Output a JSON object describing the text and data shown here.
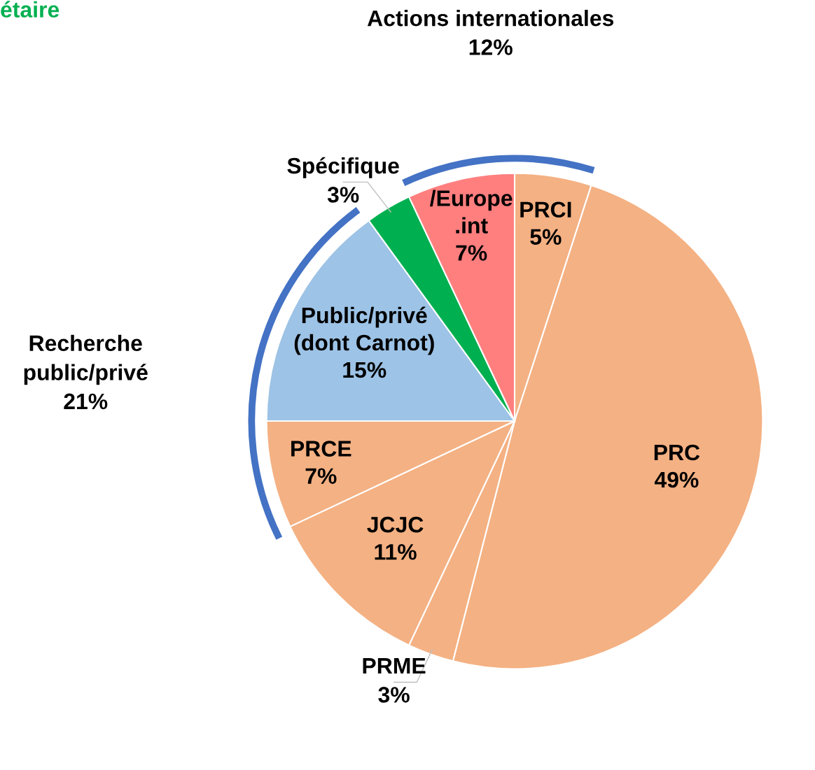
{
  "chart_data": {
    "type": "pie",
    "categories": [
      "PRCI",
      "PRC",
      "PRME",
      "JCJC",
      "PRCE",
      "Public/privé\n(dont Carnot)",
      "Spécifique",
      "/Europe\n.int"
    ],
    "values": [
      5,
      49,
      3,
      11,
      7,
      15,
      3,
      7
    ],
    "value_labels": [
      "5%",
      "49%",
      "3%",
      "11%",
      "7%",
      "15%",
      "3%",
      "7%"
    ],
    "colors": [
      "#f4b183",
      "#f4b183",
      "#f4b183",
      "#f4b183",
      "#f4b183",
      "#9dc3e6",
      "#00b050",
      "#ff7f7f"
    ],
    "annotations": [
      "Actions internationales\n12%",
      "Recherche\npublic/privé\n21%",
      "étaire"
    ],
    "legend": false
  }
}
